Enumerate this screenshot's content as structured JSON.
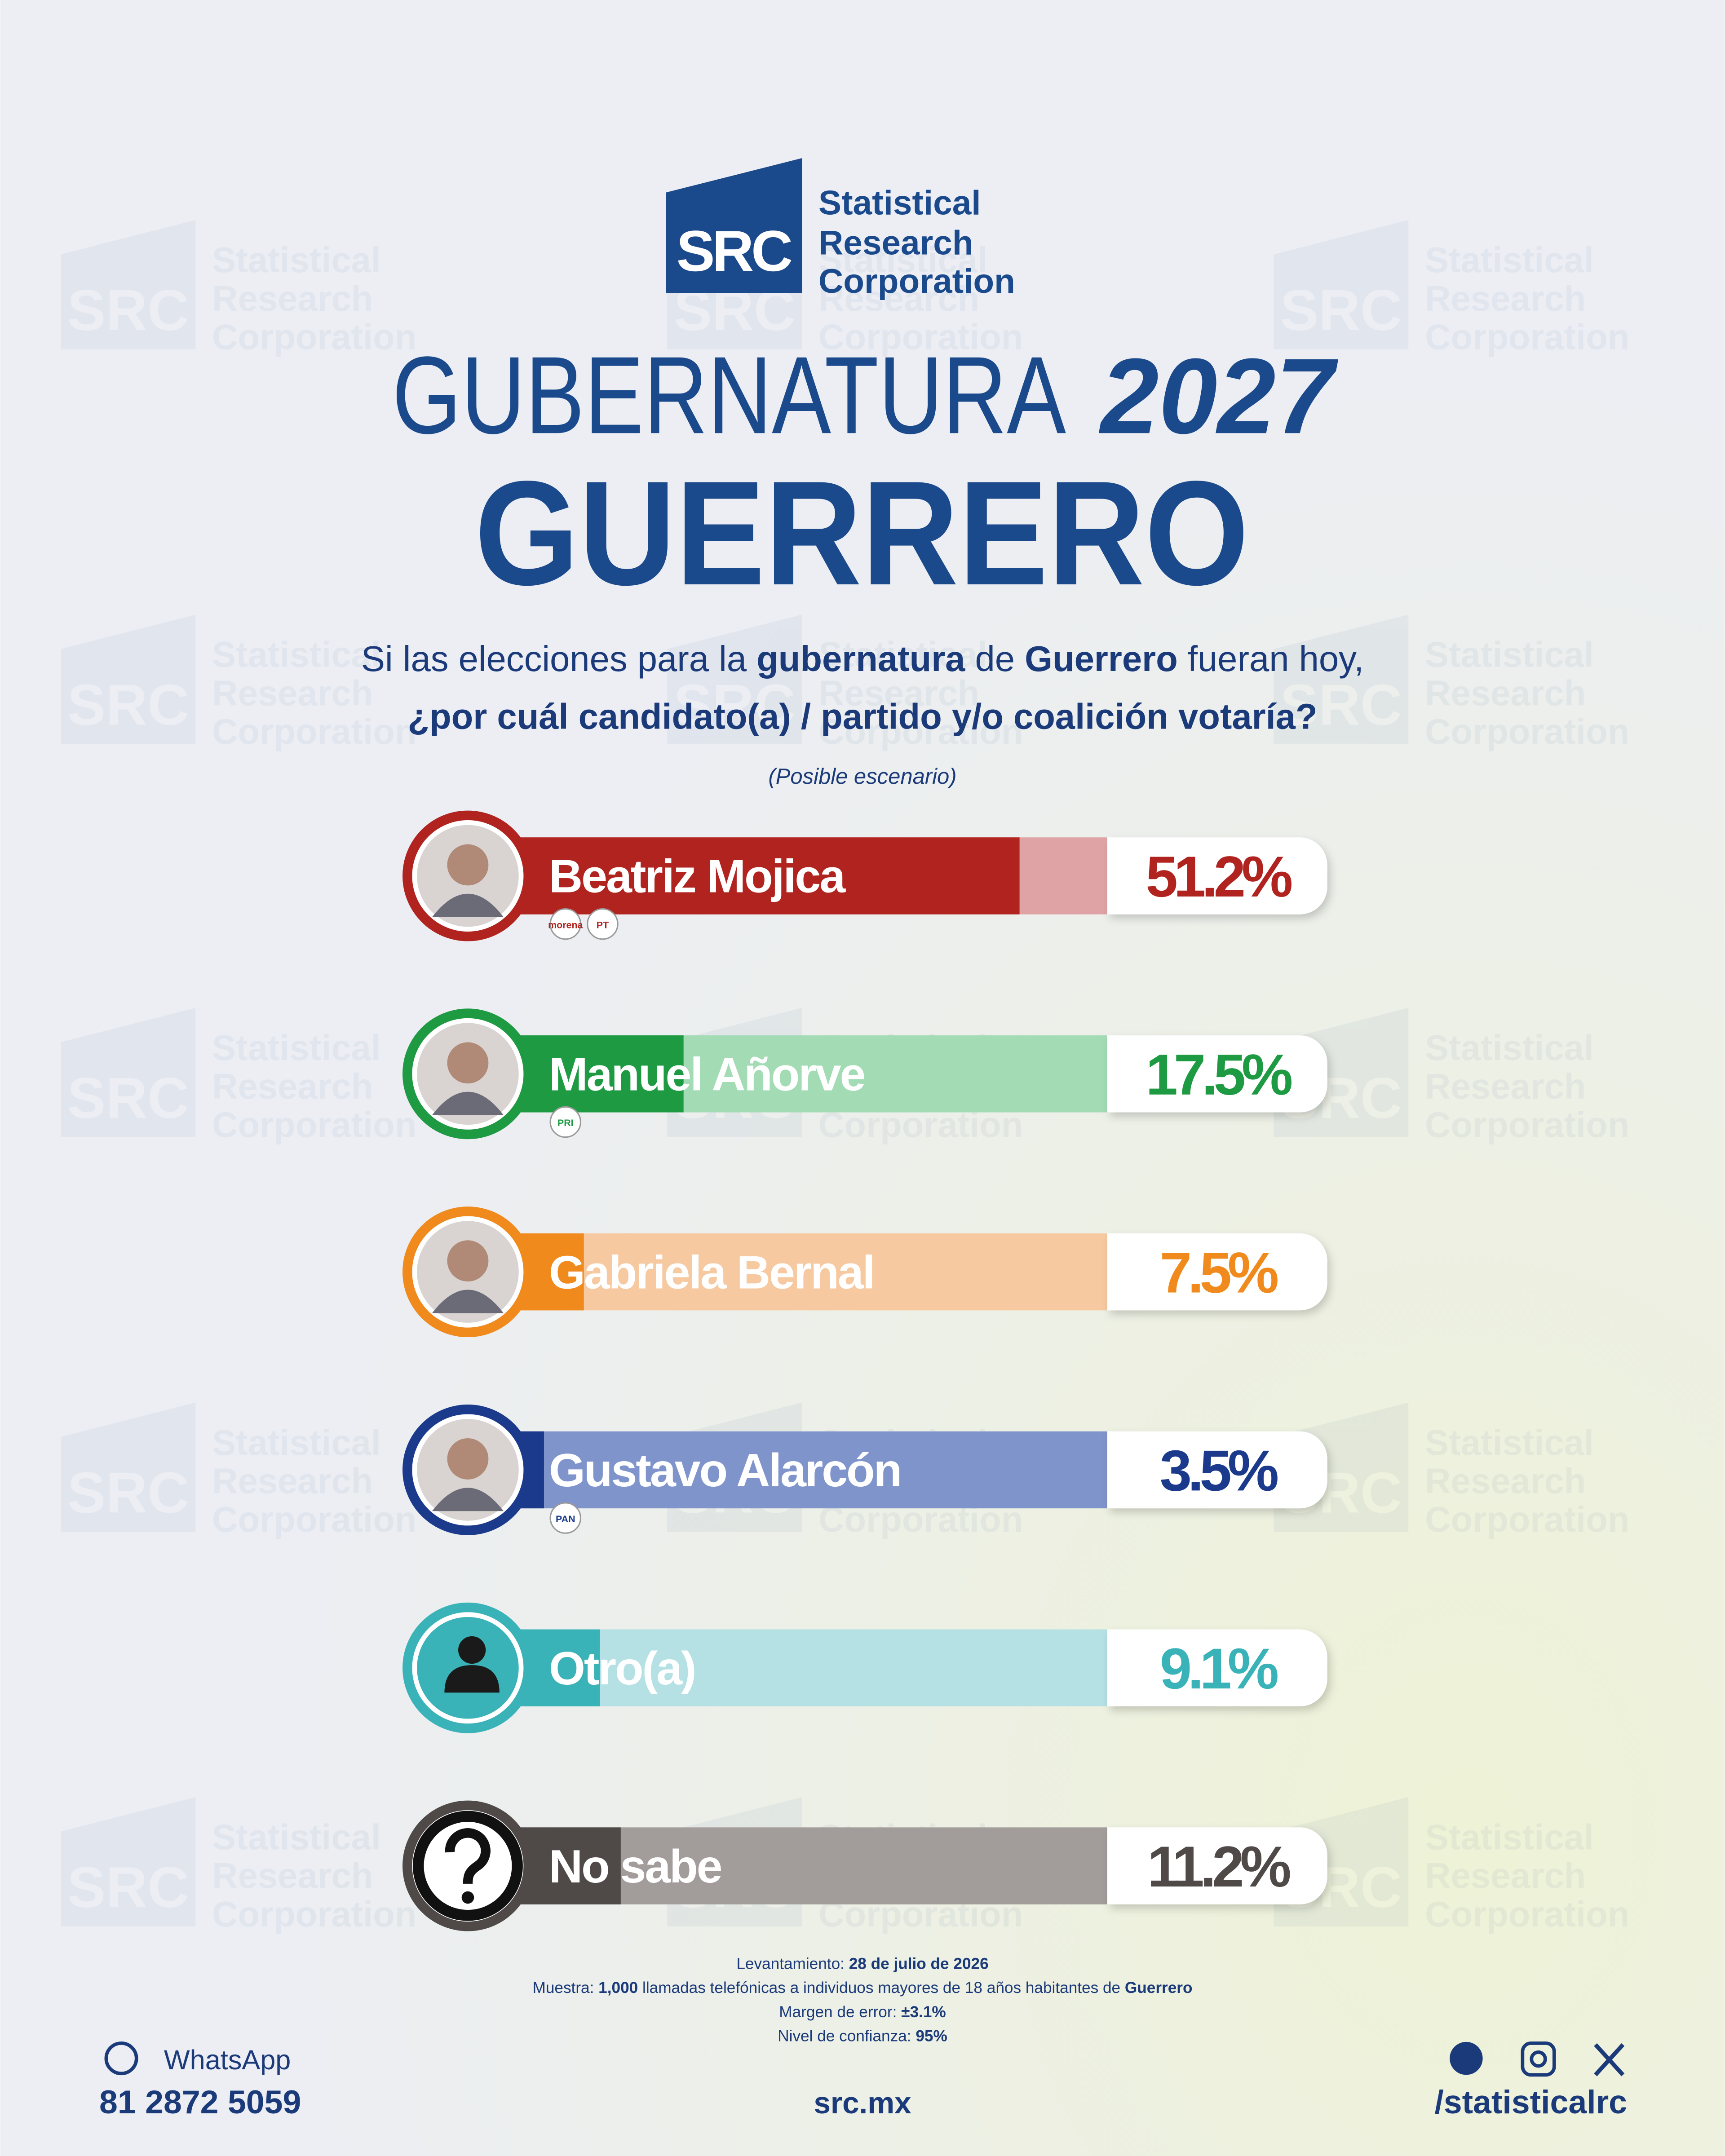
{
  "logo": {
    "abbr": "SRC",
    "lines": [
      "Statistical",
      "Research",
      "Corporation"
    ]
  },
  "chart_data": {
    "type": "bar",
    "orientation": "horizontal",
    "title": "GUBERNATURA",
    "title_year": "2027",
    "subtitle": "GUERRERO",
    "question": [
      [
        {
          "text": "Si las elecciones para la ",
          "bold": false
        },
        {
          "text": "gubernatura",
          "bold": true
        },
        {
          "text": " de ",
          "bold": false
        },
        {
          "text": "Guerrero",
          "bold": true
        },
        {
          "text": " fueran hoy,",
          "bold": false
        }
      ],
      [
        {
          "text": "¿por cuál candidato(a) / partido y/o coalición votaría?",
          "bold": true
        }
      ]
    ],
    "note": "(Posible escenario)",
    "categories": [
      "Beatriz Mojica",
      "Manuel Añorve",
      "Gabriela Bernal",
      "Gustavo Alarcón",
      "Otro(a)",
      "No sabe"
    ],
    "values": [
      51.2,
      17.5,
      7.5,
      3.5,
      9.1,
      11.2
    ],
    "value_labels": [
      "51.2%",
      "17.5%",
      "7.5%",
      "3.5%",
      "9.1%",
      "11.2%"
    ],
    "colors": [
      "#b0231f",
      "#1e9a43",
      "#f08a1c",
      "#1b3a8c",
      "#3ab3b8",
      "#4f4948"
    ],
    "track_colors": [
      "#dfa3a5",
      "#a3dbb5",
      "#f6c9a0",
      "#8094cc",
      "#b5e1e4",
      "#a29c9b"
    ],
    "parties": [
      [
        "morena",
        "PT"
      ],
      [
        "PRI"
      ],
      [],
      [
        "PAN"
      ],
      [],
      []
    ],
    "xlim": [
      0,
      60
    ]
  },
  "footnotes": [
    [
      {
        "text": "Levantamiento: ",
        "bold": false
      },
      {
        "text": "28 de julio de 2026",
        "bold": true
      }
    ],
    [
      {
        "text": "Muestra: ",
        "bold": false
      },
      {
        "text": "1,000",
        "bold": true
      },
      {
        "text": " llamadas telefónicas a individuos mayores de 18 años habitantes de ",
        "bold": false
      },
      {
        "text": "Guerrero",
        "bold": true
      }
    ],
    [
      {
        "text": "Margen de error: ",
        "bold": false
      },
      {
        "text": "±3.1%",
        "bold": true
      }
    ],
    [
      {
        "text": "Nivel de confianza: ",
        "bold": false
      },
      {
        "text": "95%",
        "bold": true
      }
    ]
  ],
  "contact": {
    "whatsapp_label": "WhatsApp",
    "phone": "81 2872 5059",
    "website": "src.mx",
    "social": "/statisticalrc"
  }
}
